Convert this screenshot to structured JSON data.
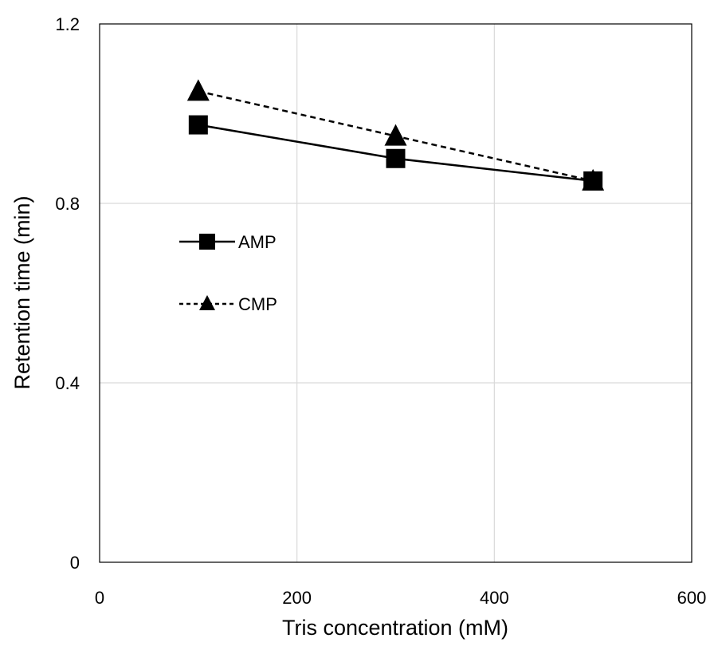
{
  "chart_data": {
    "type": "line",
    "title": "",
    "xlabel": "Tris concentration (mM)",
    "ylabel": "Retention time (min)",
    "xlim": [
      0,
      600
    ],
    "ylim": [
      0,
      1.2
    ],
    "x_ticks": [
      "0",
      "200",
      "400",
      "600"
    ],
    "y_ticks": [
      "0",
      "0.4",
      "0.8",
      "1.2"
    ],
    "grid": true,
    "legend_position": "left-middle",
    "series": [
      {
        "name": "AMP",
        "marker": "square",
        "line_style": "solid",
        "color": "#000000",
        "x": [
          100,
          300,
          500
        ],
        "y": [
          0.975,
          0.9,
          0.85
        ]
      },
      {
        "name": "CMP",
        "marker": "triangle",
        "line_style": "dashed",
        "color": "#000000",
        "x": [
          100,
          300,
          500
        ],
        "y": [
          1.05,
          0.95,
          0.85
        ]
      }
    ]
  }
}
